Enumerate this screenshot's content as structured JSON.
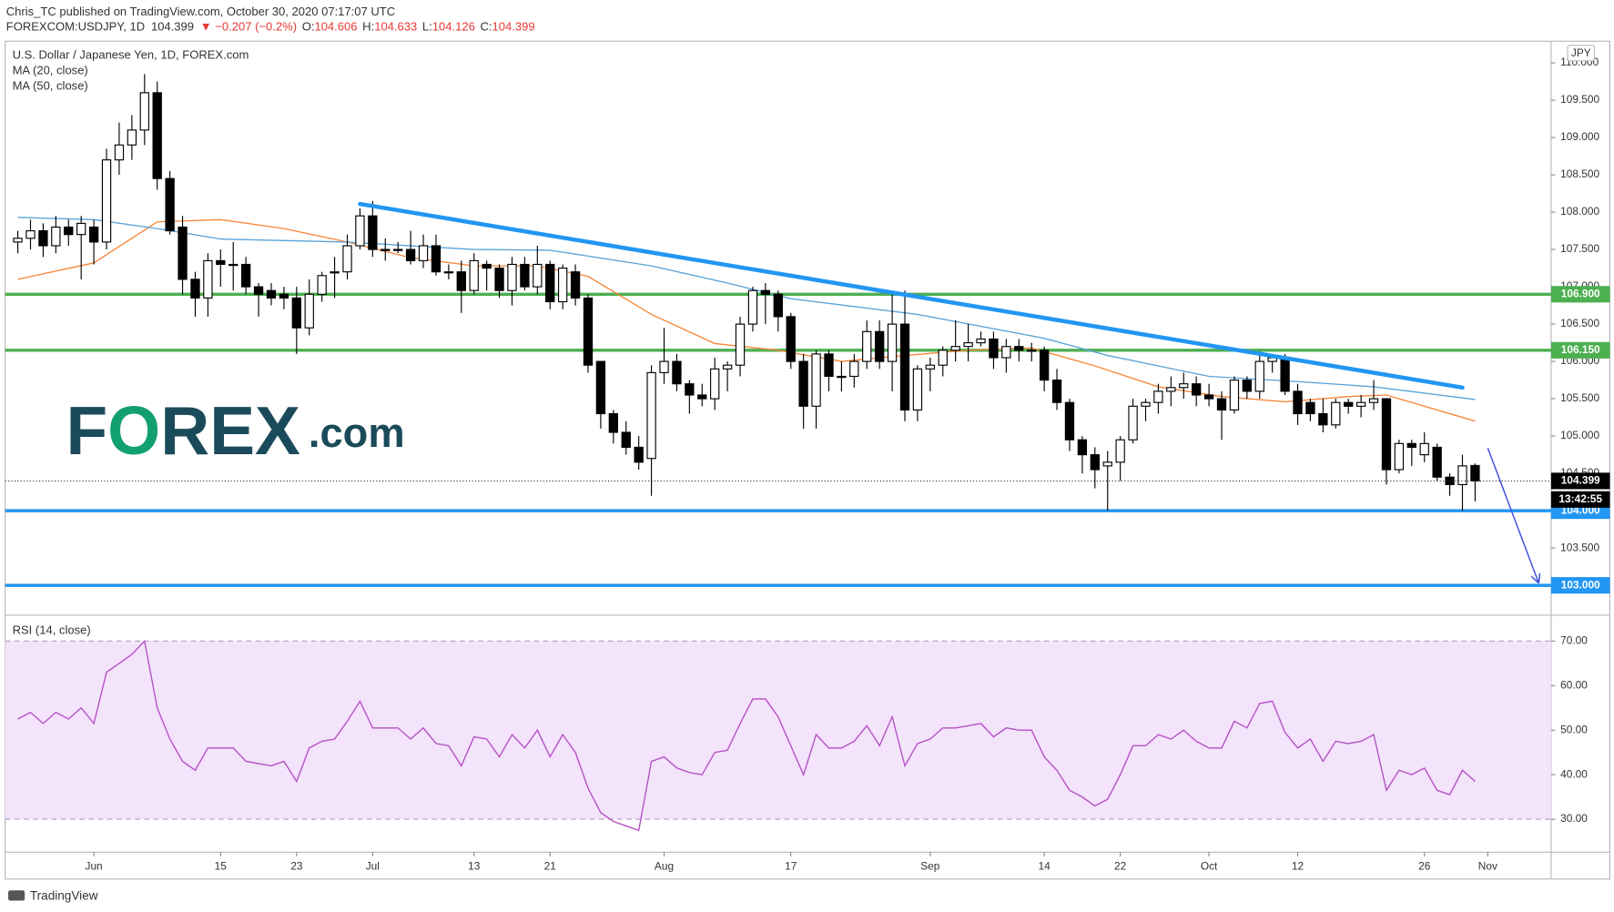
{
  "header": {
    "author": "Chris_TC published on TradingView.com, October 30, 2020 07:17:07 UTC",
    "symbol": "FOREXCOM:USDJPY, 1D",
    "last": "104.399",
    "change": "▼ −0.207 (−0.2%)",
    "ohlc": [
      {
        "key": "O:",
        "value": "104.606"
      },
      {
        "key": "H:",
        "value": "104.633"
      },
      {
        "key": "L:",
        "value": "104.126"
      },
      {
        "key": "C:",
        "value": "104.399"
      }
    ]
  },
  "logo": [
    "F",
    "O",
    "REX",
    ".com"
  ],
  "footer": "TradingView",
  "chart_data": {
    "type": "candlestick",
    "title": "U.S. Dollar / Japanese Yen, 1D, FOREX.com",
    "currency": "JPY",
    "x": [
      "2020-05-22",
      "2020-05-25",
      "2020-05-26",
      "2020-05-27",
      "2020-05-28",
      "2020-05-29",
      "2020-06-01",
      "2020-06-02",
      "2020-06-03",
      "2020-06-04",
      "2020-06-05",
      "2020-06-08",
      "2020-06-09",
      "2020-06-10",
      "2020-06-11",
      "2020-06-12",
      "2020-06-15",
      "2020-06-16",
      "2020-06-17",
      "2020-06-18",
      "2020-06-19",
      "2020-06-22",
      "2020-06-23",
      "2020-06-24",
      "2020-06-25",
      "2020-06-26",
      "2020-06-29",
      "2020-06-30",
      "2020-07-01",
      "2020-07-02",
      "2020-07-03",
      "2020-07-06",
      "2020-07-07",
      "2020-07-08",
      "2020-07-09",
      "2020-07-10",
      "2020-07-13",
      "2020-07-14",
      "2020-07-15",
      "2020-07-16",
      "2020-07-17",
      "2020-07-20",
      "2020-07-21",
      "2020-07-22",
      "2020-07-23",
      "2020-07-24",
      "2020-07-27",
      "2020-07-28",
      "2020-07-29",
      "2020-07-30",
      "2020-07-31",
      "2020-08-03",
      "2020-08-04",
      "2020-08-05",
      "2020-08-06",
      "2020-08-07",
      "2020-08-10",
      "2020-08-11",
      "2020-08-12",
      "2020-08-13",
      "2020-08-14",
      "2020-08-17",
      "2020-08-18",
      "2020-08-19",
      "2020-08-20",
      "2020-08-21",
      "2020-08-24",
      "2020-08-25",
      "2020-08-26",
      "2020-08-27",
      "2020-08-28",
      "2020-08-31",
      "2020-09-01",
      "2020-09-02",
      "2020-09-03",
      "2020-09-04",
      "2020-09-07",
      "2020-09-08",
      "2020-09-09",
      "2020-09-10",
      "2020-09-11",
      "2020-09-14",
      "2020-09-15",
      "2020-09-16",
      "2020-09-17",
      "2020-09-18",
      "2020-09-21",
      "2020-09-22",
      "2020-09-23",
      "2020-09-24",
      "2020-09-25",
      "2020-09-28",
      "2020-09-29",
      "2020-09-30",
      "2020-10-01",
      "2020-10-02",
      "2020-10-05",
      "2020-10-06",
      "2020-10-07",
      "2020-10-08",
      "2020-10-09",
      "2020-10-12",
      "2020-10-13",
      "2020-10-14",
      "2020-10-15",
      "2020-10-16",
      "2020-10-19",
      "2020-10-20",
      "2020-10-21",
      "2020-10-22",
      "2020-10-23",
      "2020-10-26",
      "2020-10-27",
      "2020-10-28",
      "2020-10-29",
      "2020-10-30"
    ],
    "open": [
      107.6,
      107.65,
      107.75,
      107.55,
      107.8,
      107.7,
      107.8,
      107.6,
      108.7,
      108.9,
      109.1,
      109.6,
      108.45,
      107.8,
      107.1,
      106.85,
      107.35,
      107.3,
      107.3,
      107.0,
      106.95,
      106.9,
      106.85,
      106.45,
      106.9,
      107.2,
      107.2,
      107.55,
      107.95,
      107.5,
      107.5,
      107.5,
      107.35,
      107.55,
      107.2,
      107.2,
      106.95,
      107.3,
      107.25,
      106.95,
      107.3,
      107.0,
      107.3,
      106.8,
      107.2,
      106.85,
      106.0,
      105.3,
      105.05,
      104.85,
      104.7,
      105.85,
      106.0,
      105.7,
      105.55,
      105.5,
      105.9,
      105.95,
      106.5,
      106.95,
      106.9,
      106.6,
      106.0,
      105.4,
      106.1,
      105.8,
      105.8,
      106.0,
      106.4,
      106.0,
      106.5,
      105.35,
      105.9,
      105.95,
      106.15,
      106.2,
      106.25,
      106.3,
      106.05,
      106.2,
      106.15,
      106.15,
      105.75,
      105.45,
      104.95,
      104.75,
      104.6,
      104.65,
      104.95,
      105.4,
      105.45,
      105.6,
      105.65,
      105.7,
      105.55,
      105.5,
      105.35,
      105.75,
      105.6,
      106.0,
      106.05,
      105.6,
      105.45,
      105.3,
      105.15,
      105.45,
      105.4,
      105.45,
      105.5,
      104.55,
      104.9,
      104.75,
      104.85,
      104.45,
      104.35,
      104.606
    ],
    "high": [
      107.75,
      107.9,
      107.85,
      107.95,
      107.9,
      107.95,
      107.9,
      108.85,
      109.2,
      109.3,
      109.85,
      109.75,
      108.55,
      107.95,
      107.2,
      107.45,
      107.5,
      107.6,
      107.4,
      107.05,
      107.05,
      107.0,
      107.0,
      107.1,
      107.2,
      107.4,
      107.7,
      108.05,
      108.15,
      107.65,
      107.6,
      107.75,
      107.7,
      107.7,
      107.3,
      107.35,
      107.45,
      107.35,
      107.3,
      107.4,
      107.4,
      107.55,
      107.35,
      107.3,
      107.3,
      106.9,
      106.0,
      105.35,
      105.2,
      105.0,
      105.95,
      106.45,
      106.1,
      105.75,
      105.7,
      106.05,
      106.0,
      106.6,
      107.0,
      107.05,
      106.95,
      106.65,
      106.1,
      106.15,
      106.15,
      106.0,
      106.1,
      106.55,
      106.55,
      106.95,
      106.95,
      105.95,
      106.05,
      106.2,
      106.55,
      106.5,
      106.4,
      106.4,
      106.3,
      106.3,
      106.25,
      106.2,
      105.9,
      105.5,
      105.0,
      104.85,
      104.8,
      105.0,
      105.5,
      105.5,
      105.7,
      105.8,
      105.85,
      105.8,
      105.7,
      105.6,
      105.8,
      105.8,
      106.1,
      106.1,
      106.1,
      105.7,
      105.5,
      105.5,
      105.5,
      105.5,
      105.55,
      105.75,
      105.5,
      104.95,
      104.95,
      105.05,
      104.9,
      104.5,
      104.75,
      104.633
    ],
    "low": [
      107.45,
      107.5,
      107.4,
      107.45,
      107.55,
      107.1,
      107.3,
      107.5,
      108.5,
      108.7,
      108.9,
      108.3,
      107.7,
      106.9,
      106.6,
      106.6,
      107.0,
      106.95,
      106.9,
      106.6,
      106.75,
      106.7,
      106.1,
      106.35,
      106.8,
      106.85,
      107.1,
      107.5,
      107.4,
      107.35,
      107.45,
      107.3,
      107.25,
      107.15,
      107.1,
      106.65,
      106.9,
      106.95,
      106.85,
      106.75,
      106.95,
      106.9,
      106.7,
      106.7,
      106.75,
      105.85,
      105.1,
      104.9,
      104.75,
      104.55,
      104.2,
      105.7,
      105.6,
      105.3,
      105.4,
      105.35,
      105.6,
      105.8,
      106.4,
      106.5,
      106.4,
      105.9,
      105.1,
      105.1,
      105.6,
      105.6,
      105.65,
      105.9,
      105.9,
      105.6,
      105.2,
      105.2,
      105.6,
      105.8,
      106.0,
      106.0,
      106.2,
      105.9,
      105.85,
      106.0,
      106.0,
      105.6,
      105.35,
      104.8,
      104.5,
      104.3,
      104.0,
      104.4,
      104.9,
      105.2,
      105.3,
      105.4,
      105.5,
      105.4,
      105.4,
      104.95,
      105.3,
      105.5,
      105.5,
      105.85,
      105.55,
      105.15,
      105.2,
      105.05,
      105.1,
      105.3,
      105.25,
      105.35,
      104.35,
      104.5,
      104.6,
      104.65,
      104.4,
      104.2,
      104.0,
      104.126
    ],
    "close": [
      107.65,
      107.75,
      107.55,
      107.8,
      107.7,
      107.85,
      107.6,
      108.7,
      108.9,
      109.1,
      109.6,
      108.45,
      107.75,
      107.1,
      106.85,
      107.35,
      107.3,
      107.3,
      107.0,
      106.9,
      106.85,
      106.85,
      106.45,
      106.9,
      107.15,
      107.2,
      107.55,
      107.95,
      107.5,
      107.5,
      107.5,
      107.35,
      107.55,
      107.2,
      107.2,
      106.95,
      107.35,
      107.25,
      106.95,
      107.3,
      107.0,
      107.3,
      106.8,
      107.25,
      106.85,
      105.95,
      105.3,
      105.05,
      104.85,
      104.65,
      105.85,
      106.0,
      105.7,
      105.55,
      105.5,
      105.9,
      105.95,
      106.5,
      106.95,
      106.9,
      106.6,
      106.0,
      105.4,
      106.1,
      105.8,
      105.8,
      106.0,
      106.4,
      106.0,
      106.5,
      105.35,
      105.9,
      105.95,
      106.15,
      106.2,
      106.25,
      106.3,
      106.05,
      106.2,
      106.15,
      106.15,
      105.75,
      105.45,
      104.95,
      104.75,
      104.55,
      104.65,
      104.95,
      105.4,
      105.45,
      105.6,
      105.65,
      105.7,
      105.55,
      105.5,
      105.35,
      105.75,
      105.6,
      106.0,
      106.05,
      105.6,
      105.3,
      105.3,
      105.15,
      105.45,
      105.4,
      105.45,
      105.5,
      104.55,
      104.9,
      104.85,
      104.9,
      104.45,
      104.35,
      104.6,
      104.399
    ],
    "up_color": "#ffffff",
    "down_color": "#000000",
    "xlim": [
      "2020-05-21",
      "2020-11-09"
    ],
    "xticks": [
      {
        "value": "2020-06-01",
        "label": "Jun"
      },
      {
        "value": "2020-06-15",
        "label": "15"
      },
      {
        "value": "2020-06-23",
        "label": "23"
      },
      {
        "value": "2020-07-01",
        "label": "Jul"
      },
      {
        "value": "2020-07-13",
        "label": "13"
      },
      {
        "value": "2020-07-21",
        "label": "21"
      },
      {
        "value": "2020-08-03",
        "label": "Aug"
      },
      {
        "value": "2020-08-17",
        "label": "17"
      },
      {
        "value": "2020-09-01",
        "label": "Sep"
      },
      {
        "value": "2020-09-14",
        "label": "14"
      },
      {
        "value": "2020-09-22",
        "label": "22"
      },
      {
        "value": "2020-10-01",
        "label": "Oct"
      },
      {
        "value": "2020-10-12",
        "label": "12"
      },
      {
        "value": "2020-10-26",
        "label": "26"
      },
      {
        "value": "2020-11-02",
        "label": "Nov"
      }
    ],
    "ylim": [
      102.6,
      110.29
    ],
    "yticks": [
      {
        "value": 103.5,
        "label": "103.500"
      },
      {
        "value": 104.0,
        "label": "104.000"
      },
      {
        "value": 104.5,
        "label": "104.500"
      },
      {
        "value": 105.0,
        "label": "105.000"
      },
      {
        "value": 105.5,
        "label": "105.500"
      },
      {
        "value": 106.0,
        "label": "106.000"
      },
      {
        "value": 106.5,
        "label": "106.500"
      },
      {
        "value": 107.0,
        "label": "107.000"
      },
      {
        "value": 107.5,
        "label": "107.500"
      },
      {
        "value": 108.0,
        "label": "108.000"
      },
      {
        "value": 108.5,
        "label": "108.500"
      },
      {
        "value": 109.0,
        "label": "109.000"
      },
      {
        "value": 109.5,
        "label": "109.500"
      },
      {
        "value": 110.0,
        "label": "110.000"
      }
    ],
    "moving_averages": [
      {
        "name": "MA (20, close)",
        "color": "#f7873a",
        "x": [
          "2020-05-22",
          "2020-06-01",
          "2020-06-08",
          "2020-06-15",
          "2020-06-22",
          "2020-06-29",
          "2020-07-06",
          "2020-07-13",
          "2020-07-20",
          "2020-07-24",
          "2020-07-31",
          "2020-08-07",
          "2020-08-14",
          "2020-08-21",
          "2020-08-28",
          "2020-09-04",
          "2020-09-11",
          "2020-09-18",
          "2020-09-25",
          "2020-10-02",
          "2020-10-09",
          "2020-10-16",
          "2020-10-21",
          "2020-10-30"
        ],
        "values": [
          107.1,
          107.32,
          107.87,
          107.9,
          107.78,
          107.6,
          107.39,
          107.28,
          107.28,
          107.14,
          106.63,
          106.24,
          106.15,
          106.0,
          106.08,
          106.15,
          106.18,
          105.94,
          105.66,
          105.53,
          105.46,
          105.53,
          105.55,
          105.2
        ]
      },
      {
        "name": "MA (50, close)",
        "color": "#5ba3d9",
        "x": [
          "2020-05-22",
          "2020-06-01",
          "2020-06-08",
          "2020-06-15",
          "2020-06-29",
          "2020-07-13",
          "2020-07-21",
          "2020-07-31",
          "2020-08-10",
          "2020-08-17",
          "2020-08-31",
          "2020-09-14",
          "2020-09-21",
          "2020-10-01",
          "2020-10-12",
          "2020-10-20",
          "2020-10-30"
        ],
        "values": [
          107.93,
          107.9,
          107.78,
          107.64,
          107.6,
          107.5,
          107.49,
          107.28,
          107.05,
          106.84,
          106.63,
          106.31,
          106.08,
          105.8,
          105.73,
          105.66,
          105.49
        ]
      }
    ],
    "levels": [
      {
        "value": 106.9,
        "label": "106.900",
        "color": "#4caf50"
      },
      {
        "value": 106.15,
        "label": "106.150",
        "color": "#4caf50"
      },
      {
        "value": 104.0,
        "label": "104.000",
        "color": "#2196f3"
      },
      {
        "value": 103.0,
        "label": "103.000",
        "color": "#2196f3"
      }
    ],
    "trendline": {
      "x": [
        "2020-06-30",
        "2020-10-29"
      ],
      "values": [
        108.11,
        105.65
      ],
      "color": "#2196f3"
    },
    "arrow": {
      "x": [
        "2020-11-02",
        "2020-11-06"
      ],
      "values": [
        104.84,
        103.04
      ],
      "color": "#3f51e0"
    },
    "last_price": {
      "value": 104.399,
      "label": "104.399",
      "countdown": "13:42:55"
    },
    "rsi": {
      "name": "RSI (14, close)",
      "color": "#b44fc4",
      "band": [
        30,
        70
      ],
      "band_color": "#f3e3fb",
      "values": [
        52.5,
        54,
        51.5,
        54,
        52.5,
        55,
        51.5,
        63,
        65,
        67,
        70,
        55,
        48,
        43,
        41,
        46,
        46,
        46,
        43,
        42.5,
        42,
        43,
        38.5,
        46,
        47.5,
        48,
        52,
        56.5,
        50.5,
        50.5,
        50.5,
        48,
        50.5,
        47,
        46.5,
        42,
        48.5,
        48,
        44,
        49,
        46,
        50,
        44,
        49,
        45,
        37,
        31.5,
        29.5,
        28.5,
        27.5,
        43,
        44,
        41.5,
        40.5,
        40,
        45,
        45.5,
        51.5,
        57,
        57,
        53,
        46.5,
        40,
        49,
        46,
        46,
        47.5,
        51,
        46.5,
        53,
        42,
        47,
        48,
        50.5,
        50.5,
        51,
        51.5,
        48.5,
        50.5,
        50,
        50,
        44,
        41,
        36.5,
        35,
        33,
        34.5,
        40,
        46.5,
        46.5,
        49,
        48,
        50,
        47.5,
        46,
        46,
        52,
        50.5,
        56,
        56.5,
        49.5,
        46,
        48,
        43,
        47.5,
        47,
        47.5,
        49,
        36.5,
        41,
        40,
        41.5,
        36.5,
        35.5,
        41,
        38.5
      ],
      "ylim": [
        22.6,
        75.8
      ],
      "yticks": [
        {
          "value": 30,
          "label": "30.00"
        },
        {
          "value": 40,
          "label": "40.00"
        },
        {
          "value": 50,
          "label": "50.00"
        },
        {
          "value": 60,
          "label": "60.00"
        },
        {
          "value": 70,
          "label": "70.00"
        }
      ]
    }
  }
}
